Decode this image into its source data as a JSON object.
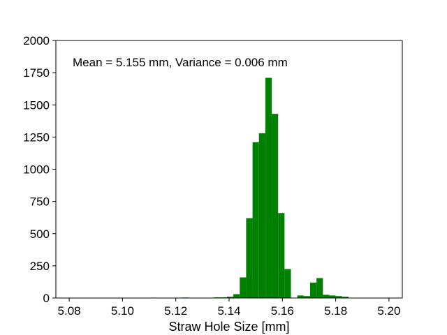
{
  "chart_data": {
    "type": "bar",
    "title": "",
    "xlabel": "Straw Hole Size [mm]",
    "ylabel": "",
    "xlim": [
      5.075,
      5.205
    ],
    "ylim": [
      0,
      2000
    ],
    "xticks": [
      5.08,
      5.1,
      5.12,
      5.14,
      5.16,
      5.18,
      5.2
    ],
    "xtick_labels": [
      "5.08",
      "5.10",
      "5.12",
      "5.14",
      "5.16",
      "5.18",
      "5.20"
    ],
    "yticks": [
      0,
      250,
      500,
      750,
      1000,
      1250,
      1500,
      1750,
      2000
    ],
    "ytick_labels": [
      "0",
      "250",
      "500",
      "750",
      "1000",
      "1250",
      "1500",
      "1750",
      "2000"
    ],
    "annotation": "Mean = 5.155 mm, Variance = 0.006 mm",
    "bin_width": 0.0024,
    "bins": [
      {
        "x0": 5.1104,
        "count": 3
      },
      {
        "x0": 5.1224,
        "count": 4
      },
      {
        "x0": 5.1344,
        "count": 5
      },
      {
        "x0": 5.1368,
        "count": 5
      },
      {
        "x0": 5.1392,
        "count": 10
      },
      {
        "x0": 5.1416,
        "count": 30
      },
      {
        "x0": 5.144,
        "count": 160
      },
      {
        "x0": 5.1464,
        "count": 620
      },
      {
        "x0": 5.1488,
        "count": 1210
      },
      {
        "x0": 5.1512,
        "count": 1280
      },
      {
        "x0": 5.1536,
        "count": 1710
      },
      {
        "x0": 5.156,
        "count": 1430
      },
      {
        "x0": 5.1584,
        "count": 660
      },
      {
        "x0": 5.1608,
        "count": 225
      },
      {
        "x0": 5.1656,
        "count": 20
      },
      {
        "x0": 5.168,
        "count": 15
      },
      {
        "x0": 5.1704,
        "count": 120
      },
      {
        "x0": 5.1728,
        "count": 155
      },
      {
        "x0": 5.1752,
        "count": 25
      },
      {
        "x0": 5.1776,
        "count": 20
      },
      {
        "x0": 5.18,
        "count": 15
      },
      {
        "x0": 5.1824,
        "count": 10
      }
    ],
    "bar_color": "#008000",
    "grid": false,
    "legend": "none"
  }
}
